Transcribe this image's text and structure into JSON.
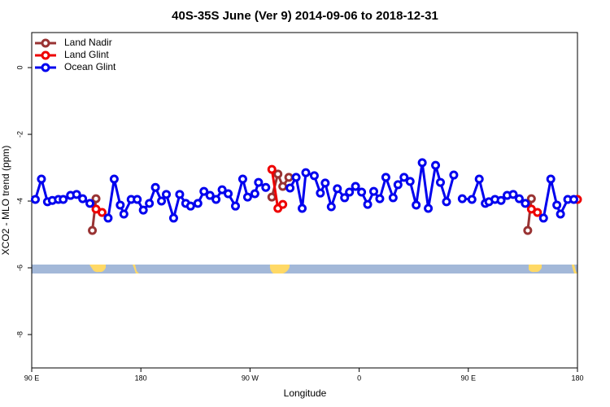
{
  "chart_data": {
    "type": "line",
    "title": "40S-35S June (Ver 9)   2014-09-06 to 2018-12-31",
    "xlabel": "Longitude",
    "ylabel": "XCO2 - MLO trend (ppm)",
    "xlim": [
      90,
      540
    ],
    "xticks": [
      {
        "value": 90,
        "label": "90 E"
      },
      {
        "value": 180,
        "label": "180"
      },
      {
        "value": 270,
        "label": "90 W"
      },
      {
        "value": 360,
        "label": "0"
      },
      {
        "value": 450,
        "label": "90 E"
      },
      {
        "value": 540,
        "label": "180"
      }
    ],
    "ylim": [
      -9,
      1.05
    ],
    "yticks": [
      0,
      -2,
      -4,
      -6,
      -8
    ],
    "legend": "top-left",
    "series": [
      {
        "name": "Land Nadir",
        "color": "#993333",
        "x": [
          140,
          143,
          null,
          288,
          293,
          297,
          302,
          null,
          499,
          502
        ],
        "values": [
          -4.88,
          -3.93,
          null,
          -3.88,
          -3.19,
          -3.56,
          -3.29,
          null,
          -4.88,
          -3.93
        ]
      },
      {
        "name": "Land Glint",
        "color": "#ee0000",
        "x": [
          143,
          148,
          null,
          288,
          293,
          297,
          null,
          502,
          507,
          null,
          540
        ],
        "values": [
          -4.24,
          -4.34,
          null,
          -3.05,
          -4.22,
          -4.1,
          null,
          -4.24,
          -4.34,
          null,
          -3.95
        ]
      },
      {
        "name": "Ocean Glint",
        "color": "#0000ee",
        "x": [
          93,
          98,
          103,
          107,
          112,
          116,
          122,
          127,
          132,
          138,
          null,
          153,
          158,
          163,
          166,
          172,
          177,
          182,
          187,
          192,
          197,
          201,
          207,
          212,
          217,
          221,
          227,
          232,
          237,
          242,
          247,
          252,
          258,
          264,
          268,
          274,
          277,
          283,
          null,
          303,
          308,
          313,
          316,
          323,
          328,
          332,
          337,
          342,
          348,
          352,
          357,
          362,
          367,
          372,
          377,
          382,
          388,
          392,
          397,
          402,
          407,
          412,
          417,
          423,
          427,
          432,
          438,
          null,
          445,
          453,
          459,
          464,
          467,
          472,
          477,
          482,
          487,
          492,
          497,
          null,
          512,
          518,
          523,
          526,
          532,
          537
        ],
        "values": [
          -3.95,
          -3.34,
          -4.02,
          -3.98,
          -3.95,
          -3.95,
          -3.83,
          -3.8,
          -3.93,
          -4.07,
          null,
          -4.51,
          -3.34,
          -4.12,
          -4.39,
          -3.95,
          -3.95,
          -4.27,
          -4.07,
          -3.59,
          -4.0,
          -3.8,
          -4.51,
          -3.8,
          -4.07,
          -4.15,
          -4.07,
          -3.71,
          -3.83,
          -3.95,
          -3.66,
          -3.78,
          -4.15,
          -3.34,
          -3.88,
          -3.78,
          -3.44,
          -3.59,
          null,
          -3.61,
          -3.29,
          -4.22,
          -3.15,
          -3.24,
          -3.76,
          -3.46,
          -4.17,
          -3.63,
          -3.9,
          -3.73,
          -3.56,
          -3.73,
          -4.1,
          -3.71,
          -3.93,
          -3.29,
          -3.9,
          -3.51,
          -3.29,
          -3.41,
          -4.12,
          -2.85,
          -4.22,
          -2.93,
          -3.44,
          -4.02,
          -3.22,
          null,
          -3.93,
          -3.95,
          -3.34,
          -4.07,
          -4.02,
          -3.95,
          -3.98,
          -3.83,
          -3.8,
          -3.93,
          -4.07,
          null,
          -4.51,
          -3.34,
          -4.12,
          -4.39,
          -3.95,
          -3.95
        ]
      }
    ]
  }
}
